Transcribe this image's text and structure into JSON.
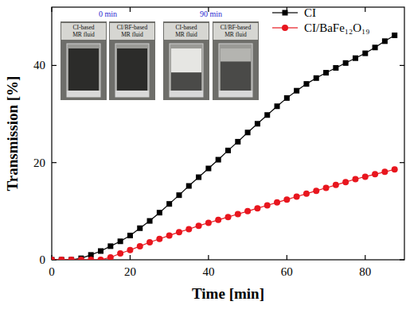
{
  "chart_data": {
    "type": "line",
    "x_label": "Time [min]",
    "y_label": "Transmission [%]",
    "xlim": [
      0,
      90
    ],
    "ylim": [
      0,
      52
    ],
    "xticks": [
      0,
      20,
      40,
      60,
      80
    ],
    "yticks": [
      0,
      20,
      40
    ],
    "grid": false,
    "legend": "top-right",
    "x": [
      0,
      2.5,
      5,
      7.5,
      10,
      12.5,
      15,
      17.5,
      20,
      22.5,
      25,
      27.5,
      30,
      32.5,
      35,
      37.5,
      40,
      42.5,
      45,
      47.5,
      50,
      52.5,
      55,
      57.5,
      60,
      62.5,
      65,
      67.5,
      70,
      72.5,
      75,
      77.5,
      80,
      82.5,
      85,
      87.5
    ],
    "series": [
      {
        "name": "CI",
        "color": "#000000",
        "marker": "square",
        "line_style": "solid",
        "values": [
          0,
          0,
          0,
          0.3,
          1,
          1.8,
          2.8,
          3.8,
          5,
          6.5,
          8,
          9.7,
          11.5,
          13.3,
          15.2,
          17,
          18.8,
          20.6,
          22.5,
          24.3,
          26.2,
          28,
          29.8,
          31.6,
          33.3,
          34.8,
          36.2,
          37.4,
          38.5,
          39.5,
          40.5,
          41.5,
          42.5,
          43.7,
          45,
          46.2
        ]
      },
      {
        "name": "CI/BaFe₁₂O₁₉",
        "color": "#e8161e",
        "marker": "circle",
        "line_style": "solid",
        "values": [
          0,
          0,
          0,
          0,
          0,
          0,
          0.5,
          1.3,
          2,
          2.8,
          3.6,
          4.3,
          5,
          5.7,
          6.3,
          7,
          7.6,
          8.2,
          8.8,
          9.4,
          10,
          10.6,
          11.2,
          11.8,
          12.4,
          13,
          13.6,
          14.2,
          14.8,
          15.4,
          16,
          16.6,
          17.1,
          17.6,
          18.1,
          18.6
        ]
      }
    ],
    "annotations": [
      {
        "text": "0 min",
        "color": "#1f1fd0"
      },
      {
        "text": "90 min",
        "color": "#1f1fd0"
      },
      {
        "text": "CI-based MR fluid"
      },
      {
        "text": "CI/BF-based MR fluid"
      },
      {
        "text": "CI-based MR fluid"
      },
      {
        "text": "CI/BF-based MR fluid"
      }
    ]
  }
}
